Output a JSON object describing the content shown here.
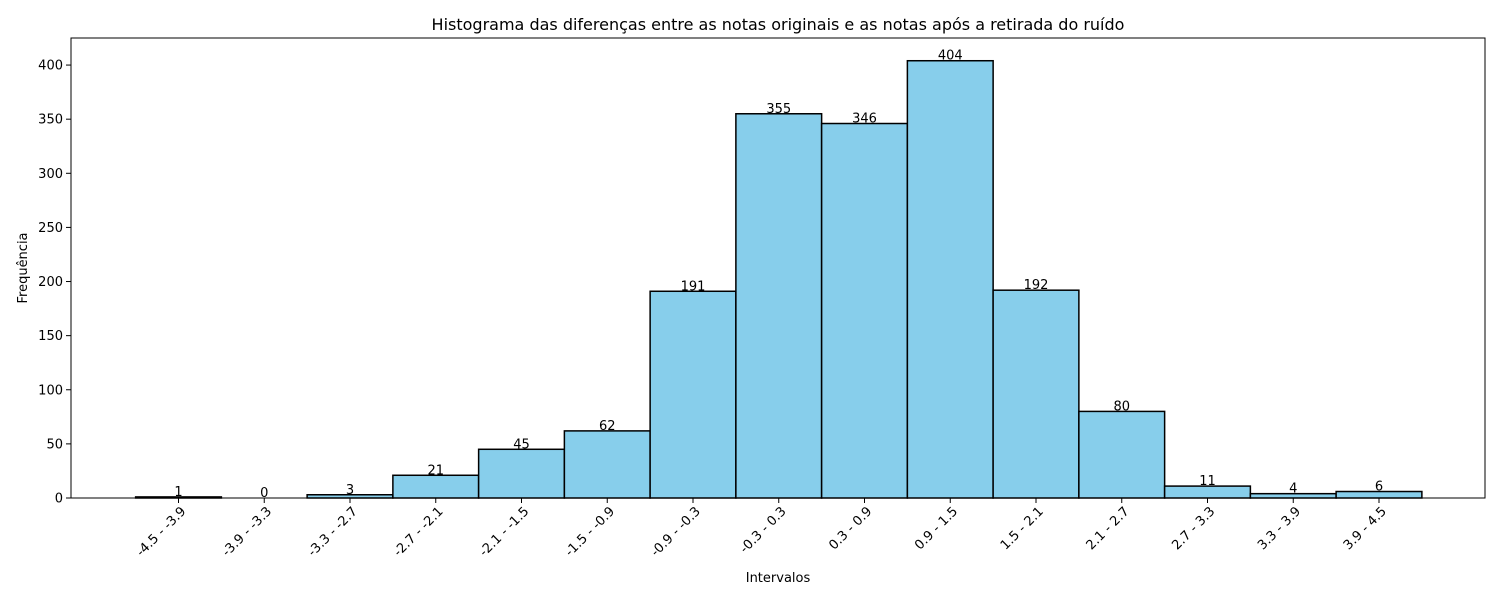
{
  "chart_data": {
    "type": "bar",
    "title": "Histograma das diferenças entre as notas originais e as notas após a retirada do ruído",
    "xlabel": "Intervalos",
    "ylabel": "Frequência",
    "categories": [
      "-4.5 - -3.9",
      "-3.9 - -3.3",
      "-3.3 - -2.7",
      "-2.7 - -2.1",
      "-2.1 - -1.5",
      "-1.5 - -0.9",
      "-0.9 - -0.3",
      "-0.3 - 0.3",
      "0.3 - 0.9",
      "0.9 - 1.5",
      "1.5 - 2.1",
      "2.1 - 2.7",
      "2.7 - 3.3",
      "3.3 - 3.9",
      "3.9 - 4.5"
    ],
    "values": [
      1,
      0,
      3,
      21,
      45,
      62,
      191,
      355,
      346,
      404,
      192,
      80,
      11,
      4,
      6
    ],
    "ylim": [
      0,
      425
    ],
    "yticks": [
      0,
      50,
      100,
      150,
      200,
      250,
      300,
      350,
      400
    ],
    "grid": false,
    "colors": {
      "bar_fill": "#87ceeb",
      "bar_edge": "#000000"
    }
  }
}
